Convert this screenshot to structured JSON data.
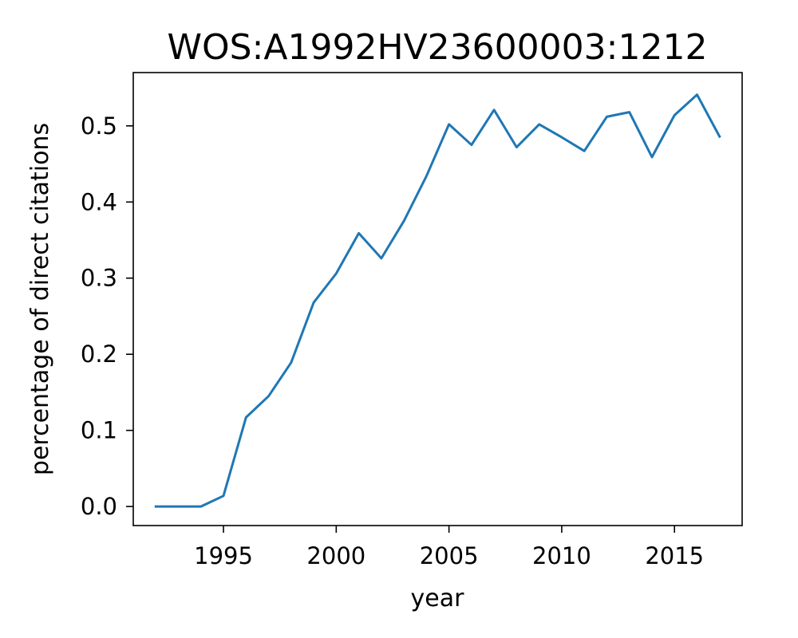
{
  "chart_data": {
    "type": "line",
    "title": "WOS:A1992HV23600003:1212",
    "xlabel": "year",
    "ylabel": "percentage of direct citations",
    "xlim": [
      1991,
      2018
    ],
    "ylim": [
      -0.025,
      0.57
    ],
    "x_ticks": [
      1995,
      2000,
      2005,
      2010,
      2015
    ],
    "y_ticks": [
      0.0,
      0.1,
      0.2,
      0.3,
      0.4,
      0.5
    ],
    "x_tick_labels": [
      "1995",
      "2000",
      "2005",
      "2010",
      "2015"
    ],
    "y_tick_labels": [
      "0.0",
      "0.1",
      "0.2",
      "0.3",
      "0.4",
      "0.5"
    ],
    "grid": false,
    "series": [
      {
        "color": "#1f77b4",
        "x": [
          1992,
          1993,
          1994,
          1995,
          1996,
          1997,
          1998,
          1999,
          2000,
          2001,
          2002,
          2003,
          2004,
          2005,
          2006,
          2007,
          2008,
          2009,
          2010,
          2011,
          2012,
          2013,
          2014,
          2015,
          2016,
          2017
        ],
        "y": [
          0.0,
          0.0,
          0.0,
          0.014,
          0.117,
          0.145,
          0.189,
          0.268,
          0.306,
          0.359,
          0.326,
          0.375,
          0.434,
          0.502,
          0.475,
          0.521,
          0.472,
          0.502,
          0.485,
          0.467,
          0.512,
          0.518,
          0.459,
          0.514,
          0.541,
          0.486
        ]
      }
    ]
  }
}
